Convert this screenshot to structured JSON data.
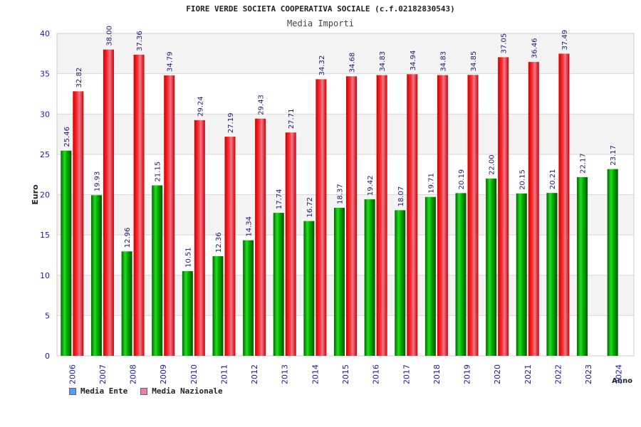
{
  "chart_data": {
    "type": "bar",
    "title": "FIORE VERDE SOCIETA COOPERATIVA SOCIALE (c.f.02182830543)",
    "subtitle": "Media Importi",
    "ylabel": "Euro",
    "xlabel": "Anno",
    "ylim": [
      0,
      40
    ],
    "yticks": [
      0,
      5,
      10,
      15,
      20,
      25,
      30,
      35,
      40
    ],
    "categories": [
      "2006",
      "2007",
      "2008",
      "2009",
      "2010",
      "2011",
      "2012",
      "2013",
      "2014",
      "2015",
      "2016",
      "2017",
      "2018",
      "2019",
      "2020",
      "2021",
      "2022",
      "2023",
      "2024"
    ],
    "series": [
      {
        "name": "Media Ente",
        "color": "#00aa00",
        "values": [
          25.46,
          19.93,
          12.96,
          21.15,
          10.51,
          12.36,
          14.34,
          17.74,
          16.72,
          18.37,
          19.42,
          18.07,
          19.71,
          20.19,
          22.0,
          20.15,
          20.21,
          22.17,
          23.17
        ],
        "labels": [
          "25.46",
          "19.93",
          "12.96",
          "21.15",
          "10.51",
          "12.36",
          "14.34",
          "17.74",
          "16.72",
          "18.37",
          "19.42",
          "18.07",
          "19.71",
          "20.19",
          "22.00",
          "20.15",
          "20.21",
          "22.17",
          "23.17"
        ]
      },
      {
        "name": "Media Nazionale",
        "color": "#dd1111",
        "values": [
          32.82,
          38.0,
          37.36,
          34.79,
          29.24,
          27.19,
          29.43,
          27.71,
          34.32,
          34.68,
          34.83,
          34.94,
          34.83,
          34.85,
          37.05,
          36.46,
          37.49,
          null,
          null
        ],
        "labels": [
          "32.82",
          "38.00",
          "37.36",
          "34.79",
          "29.24",
          "27.19",
          "29.43",
          "27.71",
          "34.32",
          "34.68",
          "34.83",
          "34.94",
          "34.83",
          "34.85",
          "37.05",
          "36.46",
          "37.49",
          null,
          null
        ]
      }
    ],
    "legend": [
      {
        "label": "Media Ente",
        "color": "#5b9bf5"
      },
      {
        "label": "Media Nazionale",
        "color": "#e87fb0"
      }
    ]
  }
}
